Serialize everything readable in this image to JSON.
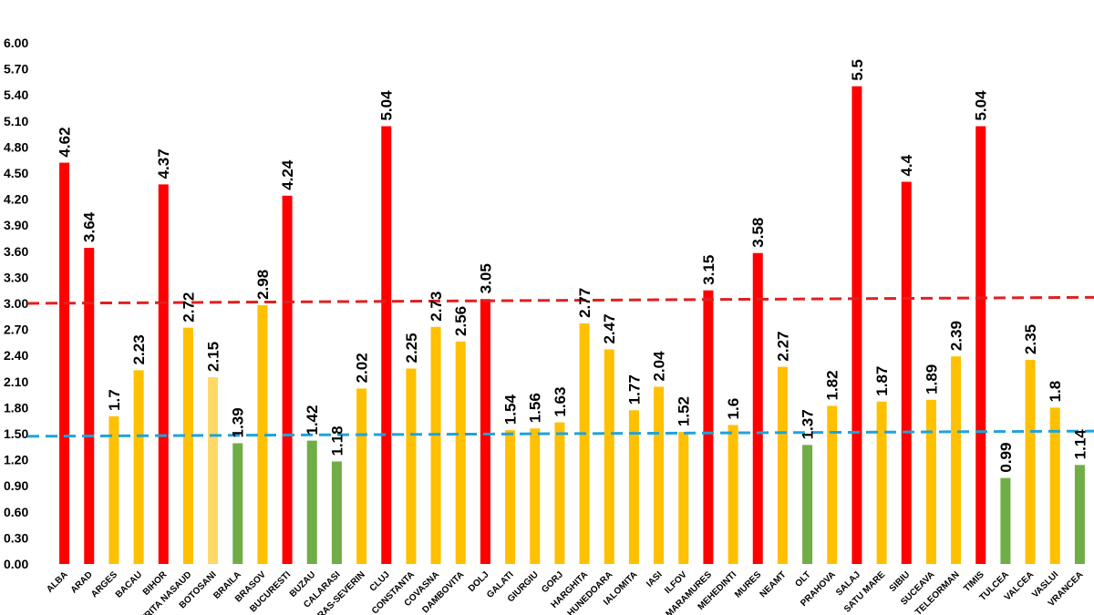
{
  "chart_data": {
    "type": "bar",
    "title": "",
    "xlabel": "",
    "ylabel": "",
    "ylim": [
      0,
      6
    ],
    "y_ticks": [
      "0.00",
      "0.30",
      "0.60",
      "0.90",
      "1.20",
      "1.50",
      "1.80",
      "2.10",
      "2.40",
      "2.70",
      "3.00",
      "3.30",
      "3.60",
      "3.90",
      "4.20",
      "4.50",
      "4.80",
      "5.10",
      "5.40",
      "5.70",
      "6.00"
    ],
    "categories": [
      "ALBA",
      "ARAD",
      "ARGES",
      "BACAU",
      "BIHOR",
      "BISTRITA NASAUD",
      "BOTOSANI",
      "BRAILA",
      "BRASOV",
      "BUCURESTI",
      "BUZAU",
      "CALARASI",
      "CARAS-SEVERIN",
      "CLUJ",
      "CONSTANTA",
      "COVASNA",
      "DAMBOVITA",
      "DOLJ",
      "GALATI",
      "GIURGIU",
      "GORJ",
      "HARGHITA",
      "HUNEDOARA",
      "IALOMITA",
      "IASI",
      "ILFOV",
      "MARAMURES",
      "MEHEDINTI",
      "MURES",
      "NEAMT",
      "OLT",
      "PRAHOVA",
      "SALAJ",
      "SATU MARE",
      "SIBIU",
      "SUCEAVA",
      "TELEORMAN",
      "TIMIS",
      "TULCEA",
      "VALCEA",
      "VASLUI",
      "VRANCEA"
    ],
    "values": [
      4.62,
      3.64,
      1.7,
      2.23,
      4.37,
      2.72,
      2.15,
      1.39,
      2.98,
      4.24,
      1.42,
      1.18,
      2.02,
      5.04,
      2.25,
      2.73,
      2.56,
      3.05,
      1.54,
      1.56,
      1.63,
      2.77,
      2.47,
      1.77,
      2.04,
      1.52,
      3.15,
      1.6,
      3.58,
      2.27,
      1.37,
      1.82,
      5.5,
      1.87,
      4.4,
      1.89,
      2.39,
      5.04,
      0.99,
      2.35,
      1.8,
      1.14
    ],
    "value_labels": [
      "4.62",
      "3.64",
      "1.7",
      "2.23",
      "4.37",
      "2.72",
      "2.15",
      "1.39",
      "2.98",
      "4.24",
      "1.42",
      "1.18",
      "2.02",
      "5.04",
      "2.25",
      "2.73",
      "2.56",
      "3.05",
      "1.54",
      "1.56",
      "1.63",
      "2.77",
      "2.47",
      "1.77",
      "2.04",
      "1.52",
      "3.15",
      "1.6",
      "3.58",
      "2.27",
      "1.37",
      "1.82",
      "5.5",
      "1.87",
      "4.4",
      "1.89",
      "2.39",
      "5.04",
      "0.99",
      "2.35",
      "1.8",
      "1.14"
    ],
    "bar_colors": [
      "#ff0000",
      "#ff0000",
      "#ffc000",
      "#ffc000",
      "#ff0000",
      "#ffc000",
      "#ffd966",
      "#70ad47",
      "#ffc000",
      "#ff0000",
      "#70ad47",
      "#70ad47",
      "#ffc000",
      "#ff0000",
      "#ffc000",
      "#ffc000",
      "#ffc000",
      "#ff0000",
      "#ffc000",
      "#ffc000",
      "#ffc000",
      "#ffc000",
      "#ffc000",
      "#ffc000",
      "#ffc000",
      "#ffc000",
      "#ff0000",
      "#ffc000",
      "#ff0000",
      "#ffc000",
      "#70ad47",
      "#ffc000",
      "#ff0000",
      "#ffc000",
      "#ff0000",
      "#ffc000",
      "#ffc000",
      "#ff0000",
      "#70ad47",
      "#ffc000",
      "#ffc000",
      "#70ad47"
    ],
    "reference_lines": [
      {
        "name": "red-threshold-line",
        "start": 3.0,
        "end": 3.07,
        "color": "#e02020",
        "style": "dashed"
      },
      {
        "name": "blue-threshold-line",
        "start": 1.47,
        "end": 1.53,
        "color": "#1fa3dc",
        "style": "dashed"
      }
    ],
    "grid": false,
    "legend": "none"
  }
}
